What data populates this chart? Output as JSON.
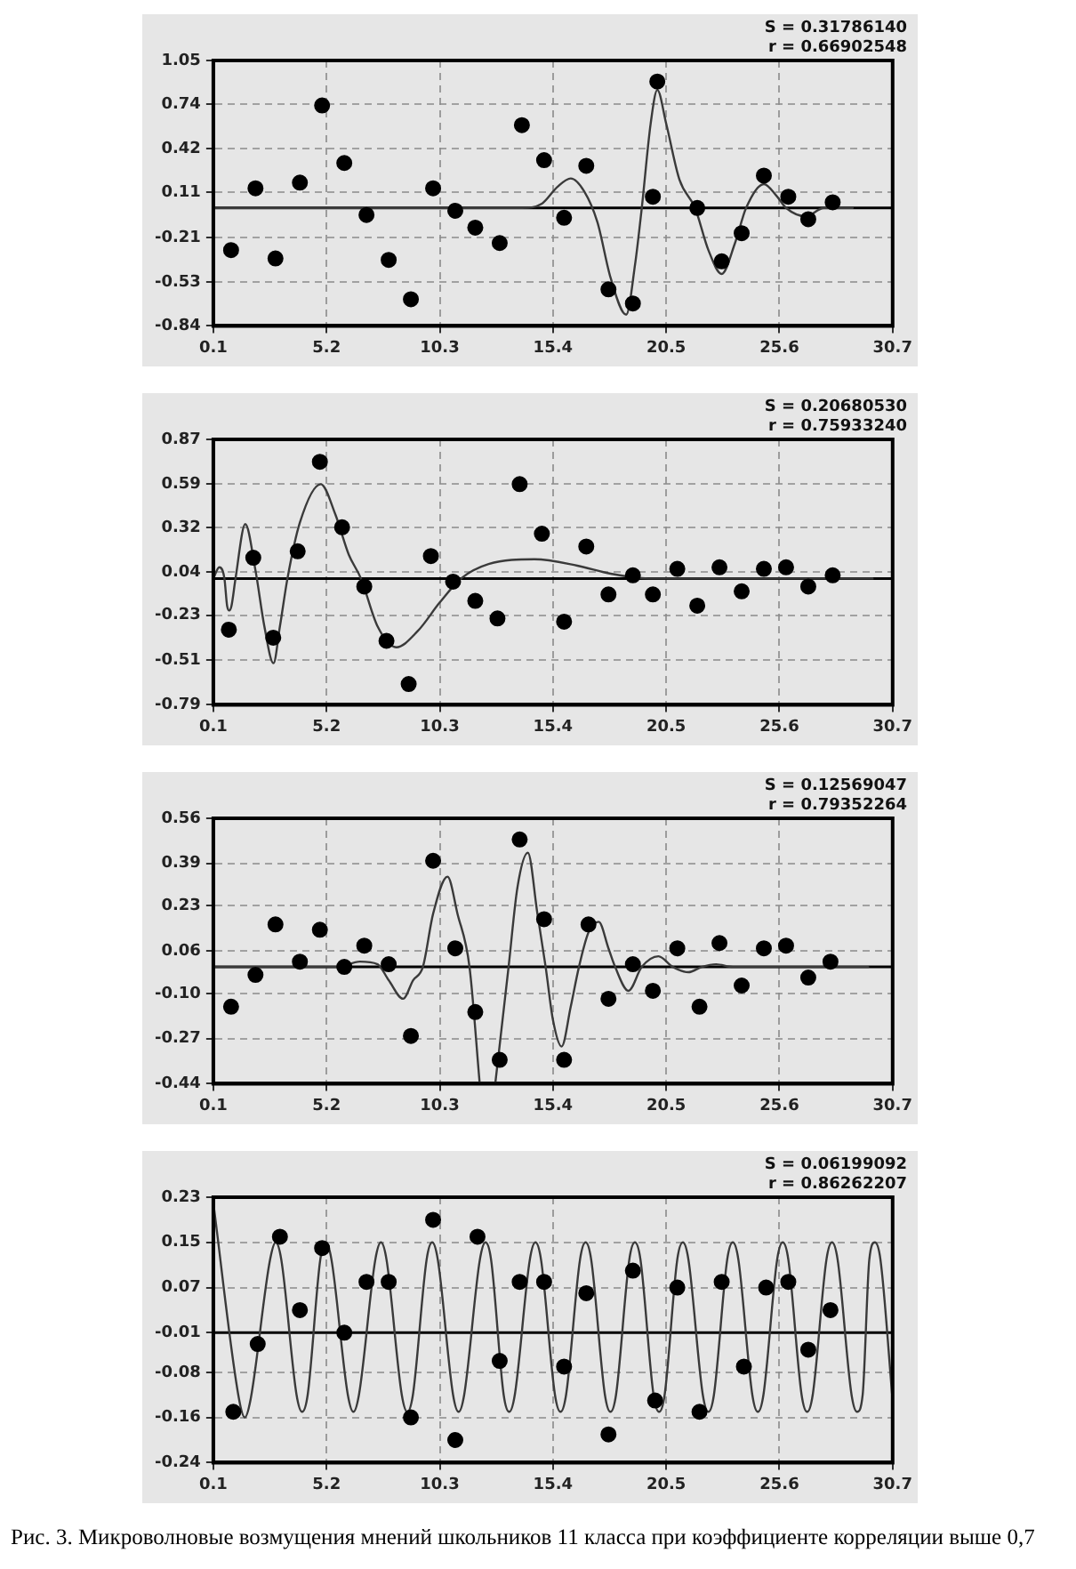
{
  "chart_data": [
    {
      "type": "scatter",
      "xlim": [
        0.1,
        30.7
      ],
      "xticks": [
        0.1,
        5.2,
        10.3,
        15.4,
        20.5,
        25.6,
        30.7
      ],
      "ylim": [
        -0.84,
        1.05
      ],
      "yticks": [
        -0.84,
        -0.53,
        -0.21,
        0.11,
        0.42,
        0.74,
        1.05
      ],
      "grid": true,
      "ref_lines": [
        {
          "axis": "y",
          "value": 0,
          "color": "#000000"
        }
      ],
      "annotations": [
        "S = 0.31786140",
        "r = 0.66902548"
      ],
      "series": [
        {
          "type": "scatter",
          "color": "#000000",
          "marker": "circle",
          "x": [
            0.9,
            2.0,
            2.9,
            4.0,
            5.0,
            6.0,
            7.0,
            8.0,
            9.0,
            10.0,
            11.0,
            11.9,
            13.0,
            14.0,
            15.0,
            15.9,
            16.9,
            17.9,
            19.0,
            19.9,
            20.1,
            21.9,
            23.0,
            23.9,
            24.9,
            26.0,
            26.9,
            28.0
          ],
          "values": [
            -0.3,
            0.14,
            -0.36,
            0.18,
            0.73,
            0.32,
            -0.05,
            -0.37,
            -0.65,
            0.14,
            -0.02,
            -0.14,
            -0.25,
            0.59,
            0.34,
            -0.07,
            0.3,
            -0.58,
            -0.68,
            0.08,
            0.9,
            0.0,
            -0.38,
            -0.18,
            0.23,
            0.08,
            -0.08,
            0.04
          ]
        },
        {
          "type": "line",
          "color": "#3a3a3a",
          "marker": "none",
          "x": [
            0.1,
            14.0,
            14.9,
            15.6,
            16.2,
            16.8,
            17.4,
            18.0,
            18.7,
            19.1,
            19.4,
            19.8,
            20.1,
            20.5,
            21.1,
            21.8,
            22.4,
            23.0,
            23.6,
            24.1,
            24.9,
            25.5,
            25.9,
            26.8,
            27.6,
            28.9
          ],
          "values": [
            0,
            0,
            0.03,
            0.15,
            0.21,
            0.12,
            -0.1,
            -0.5,
            -0.76,
            -0.4,
            0,
            0.6,
            0.84,
            0.6,
            0.2,
            0,
            -0.3,
            -0.47,
            -0.25,
            0,
            0.17,
            0.08,
            0,
            -0.06,
            0,
            0
          ]
        }
      ]
    },
    {
      "type": "scatter",
      "xlim": [
        0.1,
        30.7
      ],
      "xticks": [
        0.1,
        5.2,
        10.3,
        15.4,
        20.5,
        25.6,
        30.7
      ],
      "ylim": [
        -0.79,
        0.87
      ],
      "yticks": [
        -0.79,
        -0.51,
        -0.23,
        0.04,
        0.32,
        0.59,
        0.87
      ],
      "grid": true,
      "ref_lines": [
        {
          "axis": "y",
          "value": 0,
          "color": "#000000"
        }
      ],
      "annotations": [
        "S = 0.20680530",
        "r = 0.75933240"
      ],
      "series": [
        {
          "type": "scatter",
          "color": "#000000",
          "marker": "circle",
          "x": [
            0.8,
            1.9,
            2.8,
            3.9,
            4.9,
            5.9,
            6.9,
            7.9,
            8.9,
            9.9,
            10.9,
            11.9,
            12.9,
            13.9,
            14.9,
            15.9,
            16.9,
            17.9,
            19.0,
            19.9,
            21.0,
            21.9,
            22.9,
            23.9,
            24.9,
            25.9,
            26.9,
            28.0
          ],
          "values": [
            -0.32,
            0.13,
            -0.37,
            0.17,
            0.73,
            0.32,
            -0.05,
            -0.39,
            -0.66,
            0.14,
            -0.02,
            -0.14,
            -0.25,
            0.59,
            0.28,
            -0.27,
            0.2,
            -0.1,
            0.02,
            -0.1,
            0.06,
            -0.17,
            0.07,
            -0.08,
            0.06,
            0.07,
            -0.05,
            0.02
          ]
        },
        {
          "type": "line",
          "color": "#3a3a3a",
          "marker": "none",
          "x": [
            0.1,
            0.37,
            0.6,
            0.72,
            0.82,
            0.92,
            1.1,
            1.54,
            2.0,
            2.4,
            2.81,
            3.1,
            3.44,
            4.0,
            4.94,
            5.6,
            6.2,
            6.75,
            7.5,
            8.34,
            9.3,
            10.3,
            11.26,
            12.5,
            14.57,
            16.5,
            18.0,
            19.7,
            29.8
          ],
          "values": [
            0,
            0.07,
            0,
            -0.17,
            -0.2,
            -0.17,
            0,
            0.34,
            0.05,
            -0.3,
            -0.53,
            -0.3,
            0,
            0.35,
            0.59,
            0.4,
            0.15,
            0,
            -0.3,
            -0.43,
            -0.33,
            -0.15,
            0,
            0.09,
            0.12,
            0.08,
            0.03,
            0,
            0
          ]
        }
      ]
    },
    {
      "type": "scatter",
      "xlim": [
        0.1,
        30.7
      ],
      "xticks": [
        0.1,
        5.2,
        10.3,
        15.4,
        20.5,
        25.6,
        30.7
      ],
      "ylim": [
        -0.44,
        0.56
      ],
      "yticks": [
        -0.44,
        -0.27,
        {
          "value": -0.1,
          "label": "-0.10"
        },
        0.06,
        0.23,
        0.39,
        0.56
      ],
      "grid": true,
      "ref_lines": [
        {
          "axis": "y",
          "value": 0,
          "color": "#000000"
        }
      ],
      "annotations": [
        "S = 0.12569047",
        "r = 0.79352264"
      ],
      "series": [
        {
          "type": "scatter",
          "color": "#000000",
          "marker": "circle",
          "x": [
            0.9,
            2.0,
            2.9,
            4.0,
            4.9,
            6.0,
            6.9,
            8.0,
            9.0,
            10.0,
            11.0,
            11.9,
            13.0,
            13.9,
            15.0,
            15.9,
            17.0,
            17.9,
            19.0,
            19.9,
            21.0,
            22.0,
            22.9,
            23.9,
            24.9,
            25.9,
            26.9,
            27.9
          ],
          "values": [
            -0.15,
            -0.03,
            0.16,
            0.02,
            0.14,
            0.0,
            0.08,
            0.01,
            -0.26,
            0.4,
            0.07,
            -0.17,
            -0.35,
            0.48,
            0.18,
            -0.35,
            0.16,
            -0.12,
            0.01,
            -0.09,
            0.07,
            -0.15,
            0.09,
            -0.07,
            0.07,
            0.08,
            -0.04,
            0.02
          ]
        },
        {
          "type": "line",
          "color": "#3a3a3a",
          "marker": "none",
          "x": [
            0.1,
            5.7,
            6.7,
            7.5,
            8.0,
            8.65,
            9.1,
            9.54,
            10.0,
            10.65,
            11.1,
            11.64,
            12.1,
            12.45,
            12.8,
            13.4,
            13.8,
            14.27,
            14.7,
            15.07,
            15.4,
            15.79,
            16.2,
            16.57,
            17.0,
            17.46,
            17.9,
            18.2,
            18.8,
            19.4,
            20.15,
            20.8,
            21.5,
            22.1,
            22.75,
            23.5,
            29.6
          ],
          "values": [
            0,
            0,
            0.02,
            0.01,
            -0.05,
            -0.12,
            -0.05,
            0,
            0.2,
            0.34,
            0.2,
            0,
            -0.44,
            null,
            -0.44,
            0,
            0.3,
            0.43,
            0.2,
            0,
            -0.2,
            -0.3,
            -0.15,
            0,
            0.13,
            0.17,
            0.07,
            0,
            -0.09,
            0,
            0.04,
            0,
            -0.02,
            0,
            0.01,
            0,
            0
          ]
        }
      ]
    },
    {
      "type": "scatter",
      "xlim": [
        0.1,
        30.7
      ],
      "xticks": [
        0.1,
        5.2,
        10.3,
        15.4,
        20.5,
        25.6,
        30.7
      ],
      "ylim": [
        -0.24,
        0.23
      ],
      "yticks": [
        -0.24,
        -0.16,
        -0.08,
        -0.01,
        0.07,
        0.15,
        0.23
      ],
      "grid": true,
      "ref_lines": [
        {
          "axis": "y",
          "value": -0.01,
          "color": "#000000"
        }
      ],
      "annotations": [
        "S = 0.06199092",
        "r = 0.86262207",
        "Рис. 3. Микроволновые возмущения мнений школьников 11 класса при коэффициенте корреляции выше 0,7"
      ],
      "series": [
        {
          "type": "scatter",
          "color": "#000000",
          "marker": "circle",
          "x": [
            1.0,
            2.1,
            3.1,
            4.0,
            5.0,
            6.0,
            7.0,
            8.0,
            9.0,
            10.0,
            11.0,
            12.0,
            13.0,
            13.9,
            15.0,
            15.9,
            16.9,
            17.9,
            19.0,
            20.0,
            21.0,
            22.0,
            23.0,
            24.0,
            25.0,
            26.0,
            26.9,
            27.9
          ],
          "values": [
            -0.15,
            -0.03,
            0.16,
            0.03,
            0.14,
            -0.01,
            0.08,
            0.08,
            -0.16,
            0.19,
            -0.2,
            0.16,
            -0.06,
            0.08,
            0.08,
            -0.07,
            0.06,
            -0.19,
            0.1,
            -0.13,
            0.07,
            -0.15,
            0.08,
            -0.07,
            0.07,
            0.08,
            -0.04,
            0.03
          ]
        },
        {
          "type": "line",
          "color": "#3a3a3a",
          "marker": "none",
          "x": [
            0.1,
            1.27,
            1.52,
            1.77,
            2.66,
            2.91,
            3.16,
            3.85,
            4.1,
            4.35,
            4.92,
            5.17,
            5.42,
            6.16,
            6.41,
            6.66,
            7.4,
            7.65,
            7.9,
            8.59,
            8.84,
            9.09,
            9.71,
            9.96,
            10.21,
            10.9,
            11.15,
            11.4,
            12.11,
            12.36,
            12.61,
            13.18,
            13.43,
            13.68,
            14.36,
            14.61,
            14.86,
            15.49,
            15.74,
            15.99,
            16.62,
            16.87,
            17.12,
            17.74,
            17.99,
            18.24,
            18.84,
            19.09,
            19.34,
            19.93,
            20.18,
            20.43,
            21.0,
            21.25,
            21.5,
            22.15,
            22.4,
            22.65,
            23.25,
            23.5,
            23.75,
            24.38,
            24.63,
            24.88,
            25.5,
            25.75,
            26.0,
            26.6,
            26.85,
            27.1,
            27.72,
            27.97,
            28.22,
            28.85,
            29.1,
            29.35,
            29.65,
            29.9,
            30.15,
            30.7
          ],
          "values": [
            0.22,
            -0.13,
            -0.16,
            -0.13,
            0.12,
            0.15,
            0.12,
            -0.12,
            -0.15,
            -0.12,
            0.12,
            0.15,
            0.12,
            -0.12,
            -0.15,
            -0.12,
            0.12,
            0.15,
            0.12,
            -0.12,
            -0.15,
            -0.12,
            0.12,
            0.15,
            0.12,
            -0.12,
            -0.15,
            -0.12,
            0.12,
            0.15,
            0.12,
            -0.12,
            -0.15,
            -0.12,
            0.12,
            0.15,
            0.12,
            -0.12,
            -0.15,
            -0.12,
            0.12,
            0.15,
            0.12,
            -0.12,
            -0.15,
            -0.12,
            0.12,
            0.15,
            0.12,
            -0.12,
            -0.15,
            -0.12,
            0.12,
            0.15,
            0.12,
            -0.12,
            -0.15,
            -0.12,
            0.12,
            0.15,
            0.12,
            -0.12,
            -0.15,
            -0.12,
            0.12,
            0.15,
            0.12,
            -0.12,
            -0.15,
            -0.12,
            0.12,
            0.15,
            0.12,
            -0.12,
            -0.15,
            -0.12,
            0.12,
            0.15,
            0.12,
            -0.13
          ]
        }
      ]
    }
  ]
}
